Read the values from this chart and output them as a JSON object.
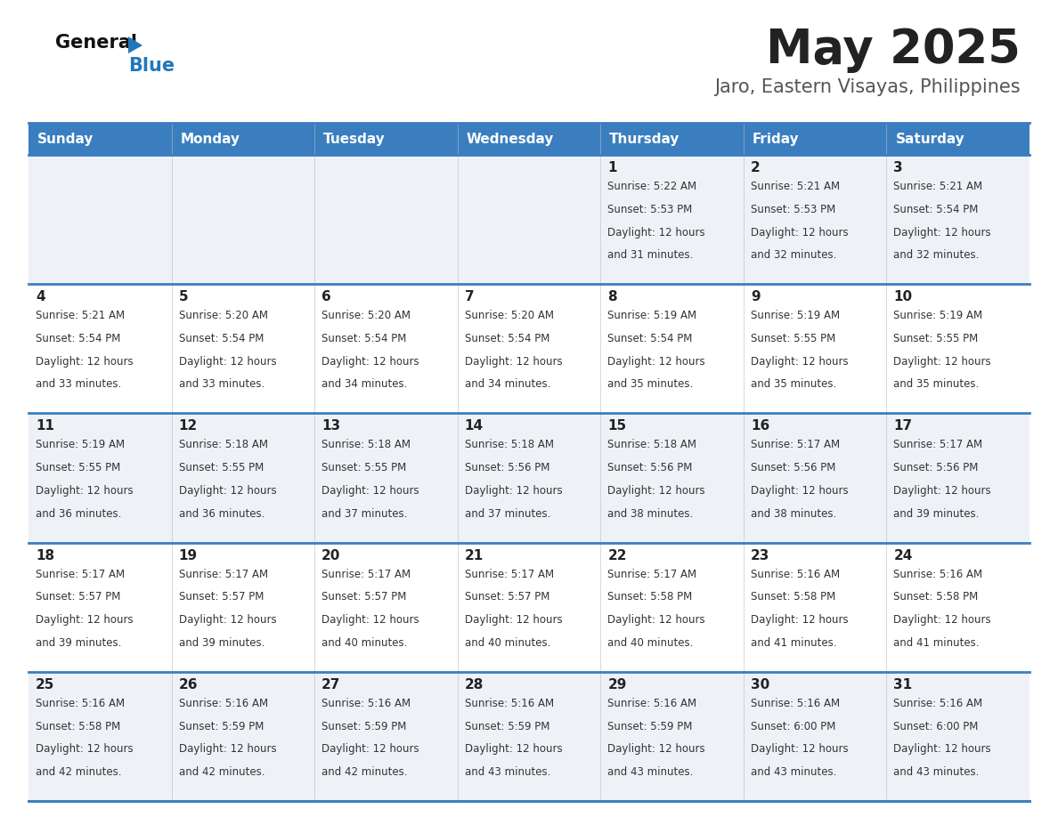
{
  "title": "May 2025",
  "subtitle": "Jaro, Eastern Visayas, Philippines",
  "days_of_week": [
    "Sunday",
    "Monday",
    "Tuesday",
    "Wednesday",
    "Thursday",
    "Friday",
    "Saturday"
  ],
  "header_bg": "#3a7ebf",
  "header_text": "#ffffff",
  "row_bg_odd": "#eef2f7",
  "row_bg_even": "#ffffff",
  "border_color": "#3a7ebf",
  "day_text_color": "#222222",
  "info_text_color": "#333333",
  "title_color": "#222222",
  "subtitle_color": "#555555",
  "logo_black": "#111111",
  "logo_blue": "#2277bb",
  "triangle_color": "#2277bb",
  "calendar_data": [
    [
      {
        "day": "",
        "sunrise": "",
        "sunset": "",
        "daylight": ""
      },
      {
        "day": "",
        "sunrise": "",
        "sunset": "",
        "daylight": ""
      },
      {
        "day": "",
        "sunrise": "",
        "sunset": "",
        "daylight": ""
      },
      {
        "day": "",
        "sunrise": "",
        "sunset": "",
        "daylight": ""
      },
      {
        "day": "1",
        "sunrise": "5:22 AM",
        "sunset": "5:53 PM",
        "daylight": "12 hours and 31 minutes."
      },
      {
        "day": "2",
        "sunrise": "5:21 AM",
        "sunset": "5:53 PM",
        "daylight": "12 hours and 32 minutes."
      },
      {
        "day": "3",
        "sunrise": "5:21 AM",
        "sunset": "5:54 PM",
        "daylight": "12 hours and 32 minutes."
      }
    ],
    [
      {
        "day": "4",
        "sunrise": "5:21 AM",
        "sunset": "5:54 PM",
        "daylight": "12 hours and 33 minutes."
      },
      {
        "day": "5",
        "sunrise": "5:20 AM",
        "sunset": "5:54 PM",
        "daylight": "12 hours and 33 minutes."
      },
      {
        "day": "6",
        "sunrise": "5:20 AM",
        "sunset": "5:54 PM",
        "daylight": "12 hours and 34 minutes."
      },
      {
        "day": "7",
        "sunrise": "5:20 AM",
        "sunset": "5:54 PM",
        "daylight": "12 hours and 34 minutes."
      },
      {
        "day": "8",
        "sunrise": "5:19 AM",
        "sunset": "5:54 PM",
        "daylight": "12 hours and 35 minutes."
      },
      {
        "day": "9",
        "sunrise": "5:19 AM",
        "sunset": "5:55 PM",
        "daylight": "12 hours and 35 minutes."
      },
      {
        "day": "10",
        "sunrise": "5:19 AM",
        "sunset": "5:55 PM",
        "daylight": "12 hours and 35 minutes."
      }
    ],
    [
      {
        "day": "11",
        "sunrise": "5:19 AM",
        "sunset": "5:55 PM",
        "daylight": "12 hours and 36 minutes."
      },
      {
        "day": "12",
        "sunrise": "5:18 AM",
        "sunset": "5:55 PM",
        "daylight": "12 hours and 36 minutes."
      },
      {
        "day": "13",
        "sunrise": "5:18 AM",
        "sunset": "5:55 PM",
        "daylight": "12 hours and 37 minutes."
      },
      {
        "day": "14",
        "sunrise": "5:18 AM",
        "sunset": "5:56 PM",
        "daylight": "12 hours and 37 minutes."
      },
      {
        "day": "15",
        "sunrise": "5:18 AM",
        "sunset": "5:56 PM",
        "daylight": "12 hours and 38 minutes."
      },
      {
        "day": "16",
        "sunrise": "5:17 AM",
        "sunset": "5:56 PM",
        "daylight": "12 hours and 38 minutes."
      },
      {
        "day": "17",
        "sunrise": "5:17 AM",
        "sunset": "5:56 PM",
        "daylight": "12 hours and 39 minutes."
      }
    ],
    [
      {
        "day": "18",
        "sunrise": "5:17 AM",
        "sunset": "5:57 PM",
        "daylight": "12 hours and 39 minutes."
      },
      {
        "day": "19",
        "sunrise": "5:17 AM",
        "sunset": "5:57 PM",
        "daylight": "12 hours and 39 minutes."
      },
      {
        "day": "20",
        "sunrise": "5:17 AM",
        "sunset": "5:57 PM",
        "daylight": "12 hours and 40 minutes."
      },
      {
        "day": "21",
        "sunrise": "5:17 AM",
        "sunset": "5:57 PM",
        "daylight": "12 hours and 40 minutes."
      },
      {
        "day": "22",
        "sunrise": "5:17 AM",
        "sunset": "5:58 PM",
        "daylight": "12 hours and 40 minutes."
      },
      {
        "day": "23",
        "sunrise": "5:16 AM",
        "sunset": "5:58 PM",
        "daylight": "12 hours and 41 minutes."
      },
      {
        "day": "24",
        "sunrise": "5:16 AM",
        "sunset": "5:58 PM",
        "daylight": "12 hours and 41 minutes."
      }
    ],
    [
      {
        "day": "25",
        "sunrise": "5:16 AM",
        "sunset": "5:58 PM",
        "daylight": "12 hours and 42 minutes."
      },
      {
        "day": "26",
        "sunrise": "5:16 AM",
        "sunset": "5:59 PM",
        "daylight": "12 hours and 42 minutes."
      },
      {
        "day": "27",
        "sunrise": "5:16 AM",
        "sunset": "5:59 PM",
        "daylight": "12 hours and 42 minutes."
      },
      {
        "day": "28",
        "sunrise": "5:16 AM",
        "sunset": "5:59 PM",
        "daylight": "12 hours and 43 minutes."
      },
      {
        "day": "29",
        "sunrise": "5:16 AM",
        "sunset": "5:59 PM",
        "daylight": "12 hours and 43 minutes."
      },
      {
        "day": "30",
        "sunrise": "5:16 AM",
        "sunset": "6:00 PM",
        "daylight": "12 hours and 43 minutes."
      },
      {
        "day": "31",
        "sunrise": "5:16 AM",
        "sunset": "6:00 PM",
        "daylight": "12 hours and 43 minutes."
      }
    ]
  ]
}
